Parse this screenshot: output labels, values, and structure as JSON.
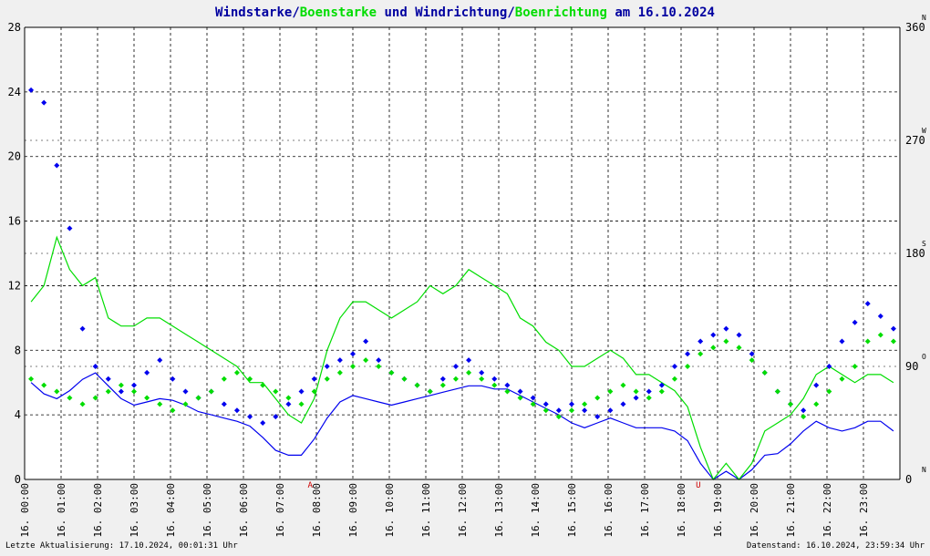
{
  "title": {
    "part1": "Windstarke",
    "sep1": "/",
    "part2": "Boenstarke",
    "mid": " und ",
    "part3": "Windrichtung",
    "sep2": "/",
    "part4": "Boenrichtung",
    "tail": " am 16.10.2024"
  },
  "footer": {
    "left": "Letzte Aktualisierung: 17.10.2024, 00:01:31 Uhr",
    "right": "Datenstand: 16.10.2024, 23:59:34 Uhr"
  },
  "colors": {
    "wind": "#0000ee",
    "gust": "#00dd00",
    "title": "#0000a0",
    "axis": "#000000",
    "grid": "#000000",
    "plot_bg": "#ffffff",
    "marker": "#cc0000"
  },
  "chart_data": {
    "type": "line",
    "x_ticks": [
      "16. 00:00",
      "16. 01:00",
      "16. 02:00",
      "16. 03:00",
      "16. 04:00",
      "16. 05:00",
      "16. 06:00",
      "16. 07:00",
      "16. 08:00",
      "16. 09:00",
      "16. 10:00",
      "16. 11:00",
      "16. 12:00",
      "16. 13:00",
      "16. 14:00",
      "16. 15:00",
      "16. 16:00",
      "16. 17:00",
      "16. 18:00",
      "16. 19:00",
      "16. 20:00",
      "16. 21:00",
      "16. 22:00",
      "16. 23:00"
    ],
    "xlim_hours": [
      0,
      24
    ],
    "y_left": {
      "ylim": [
        0,
        28
      ],
      "ticks": [
        "0",
        "4",
        "8",
        "12",
        "16",
        "20",
        "24",
        "28"
      ]
    },
    "y_right": {
      "ylim": [
        0,
        360
      ],
      "ticks": [
        {
          "value": 0,
          "label": "0",
          "dir": "N"
        },
        {
          "value": 90,
          "label": "90",
          "dir": "O"
        },
        {
          "value": 180,
          "label": "180",
          "dir": "S"
        },
        {
          "value": 270,
          "label": "270",
          "dir": "W"
        },
        {
          "value": 360,
          "label": "360",
          "dir": "N"
        }
      ]
    },
    "markers": [
      {
        "hour": 7.83,
        "label": "A"
      },
      {
        "hour": 18.47,
        "label": "U"
      }
    ],
    "series": [
      {
        "name": "Windstarke",
        "style": "lines",
        "values": [
          6.0,
          5.3,
          5.0,
          5.5,
          6.2,
          6.6,
          5.8,
          5.0,
          4.6,
          4.8,
          5.0,
          4.9,
          4.6,
          4.2,
          4.0,
          3.8,
          3.6,
          3.3,
          2.6,
          1.8,
          1.5,
          1.5,
          2.5,
          3.8,
          4.8,
          5.2,
          5.0,
          4.8,
          4.6,
          4.8,
          5.0,
          5.2,
          5.4,
          5.6,
          5.8,
          5.8,
          5.6,
          5.6,
          5.2,
          4.8,
          4.4,
          4.0,
          3.5,
          3.2,
          3.5,
          3.8,
          3.5,
          3.2,
          3.2,
          3.2,
          3.0,
          2.4,
          1.0,
          0.0,
          0.5,
          0.0,
          0.6,
          1.5,
          1.6,
          2.2,
          3.0,
          3.6,
          3.2,
          3.0,
          3.2,
          3.6,
          3.6,
          3.0
        ]
      },
      {
        "name": "Boenstarke",
        "style": "lines",
        "values": [
          11.0,
          12.0,
          15.0,
          13.0,
          12.0,
          12.5,
          10.0,
          9.5,
          9.5,
          10.0,
          10.0,
          9.5,
          9.0,
          8.5,
          8.0,
          7.5,
          7.0,
          6.0,
          6.0,
          5.0,
          4.0,
          3.5,
          5.0,
          8.0,
          10.0,
          11.0,
          11.0,
          10.5,
          10.0,
          10.5,
          11.0,
          12.0,
          11.5,
          12.0,
          13.0,
          12.5,
          12.0,
          11.5,
          10.0,
          9.5,
          8.5,
          8.0,
          7.0,
          7.0,
          7.5,
          8.0,
          7.5,
          6.5,
          6.5,
          6.0,
          5.5,
          4.5,
          2.0,
          0.0,
          1.0,
          0.0,
          1.0,
          3.0,
          3.5,
          4.0,
          5.0,
          6.5,
          7.0,
          6.5,
          6.0,
          6.5,
          6.5,
          6.0
        ]
      },
      {
        "name": "Windrichtung",
        "style": "markers",
        "values": [
          310,
          300,
          250,
          200,
          120,
          90,
          80,
          70,
          75,
          85,
          95,
          80,
          70,
          65,
          70,
          60,
          55,
          50,
          45,
          50,
          60,
          70,
          80,
          90,
          95,
          100,
          110,
          95,
          85,
          80,
          75,
          70,
          80,
          90,
          95,
          85,
          80,
          75,
          70,
          65,
          60,
          55,
          60,
          55,
          50,
          55,
          60,
          65,
          70,
          75,
          90,
          100,
          110,
          115,
          120,
          115,
          100,
          85,
          70,
          60,
          55,
          75,
          90,
          110,
          125,
          140,
          130,
          120
        ]
      },
      {
        "name": "Boenrichtung",
        "style": "markers",
        "values": [
          80,
          75,
          70,
          65,
          60,
          65,
          70,
          75,
          70,
          65,
          60,
          55,
          60,
          65,
          70,
          80,
          85,
          80,
          75,
          70,
          65,
          60,
          70,
          80,
          85,
          90,
          95,
          90,
          85,
          80,
          75,
          70,
          75,
          80,
          85,
          80,
          75,
          70,
          65,
          60,
          55,
          50,
          55,
          60,
          65,
          70,
          75,
          70,
          65,
          70,
          80,
          90,
          100,
          105,
          110,
          105,
          95,
          85,
          70,
          60,
          50,
          60,
          70,
          80,
          90,
          110,
          115,
          110
        ]
      }
    ]
  }
}
